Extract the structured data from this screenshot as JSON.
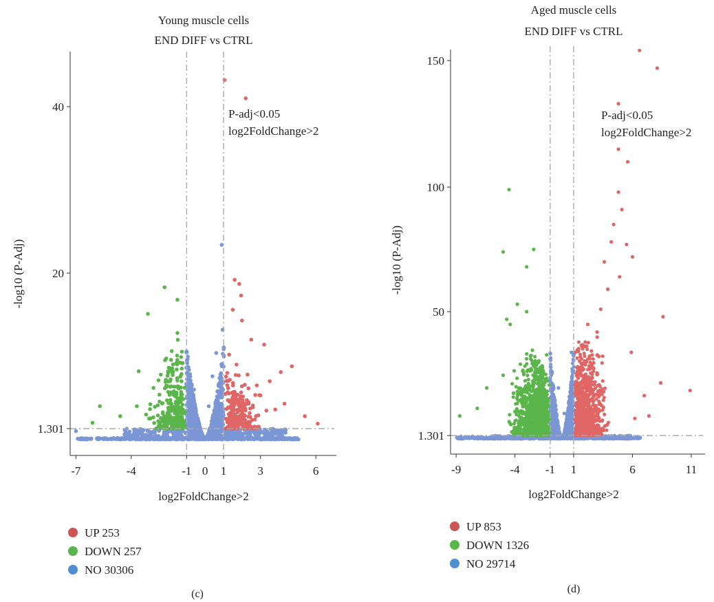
{
  "chart_data": [
    {
      "type": "scatter",
      "panel": "(c)",
      "title_line1": "Young muscle cells",
      "title_line2": "END DIFF vs CTRL",
      "xlabel": "log2FoldChange>2",
      "ylabel": "-log10 (P-Adj)",
      "annotation_line1": "P-adj<0.05",
      "annotation_line2": "log2FoldChange>2",
      "x_ticks": [
        -7,
        -4,
        -1,
        0,
        1,
        3,
        6
      ],
      "y_ticks": [
        1.301,
        20,
        40
      ],
      "xlim": [
        -7.2,
        7.0
      ],
      "ylim": [
        0,
        47
      ],
      "thresholds": {
        "x": [
          -1,
          1
        ],
        "y": 1.301
      },
      "colors": {
        "up": "#e06666",
        "down": "#5ab54a",
        "no": "#7b96d4"
      },
      "legend": [
        {
          "label": "UP 253",
          "color": "#cc5555"
        },
        {
          "label": "DOWN 257",
          "color": "#5ab54a"
        },
        {
          "label": "NO 30306",
          "color": "#4e8fd3"
        }
      ],
      "series": [
        {
          "group": "up",
          "points": [
            [
              1.05,
              43.2
            ],
            [
              2.2,
              41.0
            ],
            [
              1.6,
              19.2
            ],
            [
              1.85,
              18.7
            ],
            [
              1.95,
              17.3
            ],
            [
              1.5,
              15.6
            ],
            [
              2.0,
              14.3
            ],
            [
              2.5,
              12.0
            ],
            [
              3.2,
              11.4
            ],
            [
              4.7,
              8.8
            ],
            [
              4.1,
              8.1
            ],
            [
              3.5,
              7.0
            ],
            [
              4.3,
              4.3
            ],
            [
              5.4,
              2.8
            ],
            [
              6.1,
              1.9
            ],
            [
              1.3,
              10.2
            ],
            [
              1.7,
              9.0
            ],
            [
              2.8,
              6.5
            ],
            [
              3.0,
              5.3
            ],
            [
              3.8,
              3.6
            ],
            [
              2.3,
              7.8
            ],
            [
              1.2,
              8.0
            ]
          ]
        },
        {
          "group": "down",
          "points": [
            [
              -2.2,
              18.3
            ],
            [
              -3.1,
              15.1
            ],
            [
              -1.5,
              16.8
            ],
            [
              -1.5,
              12.8
            ],
            [
              -3.6,
              8.2
            ],
            [
              -2.4,
              7.8
            ],
            [
              -1.9,
              7.0
            ],
            [
              -5.7,
              4.0
            ],
            [
              -3.7,
              4.0
            ],
            [
              -6.1,
              2.0
            ],
            [
              -2.8,
              6.2
            ],
            [
              -1.3,
              5.7
            ],
            [
              -4.6,
              2.8
            ],
            [
              -2.0,
              3.8
            ],
            [
              -3.2,
              3.0
            ],
            [
              -1.7,
              2.3
            ]
          ]
        },
        {
          "group": "no",
          "points": [
            [
              0.9,
              23.4
            ],
            [
              0.95,
              13.2
            ],
            [
              0.6,
              10.4
            ],
            [
              0.4,
              7.6
            ],
            [
              -0.6,
              6.0
            ],
            [
              -7.0,
              1.0
            ],
            [
              0.2,
              4.0
            ]
          ]
        }
      ]
    },
    {
      "type": "scatter",
      "panel": "(d)",
      "title_line1": "Aged muscle cells",
      "title_line2": "END DIFF vs CTRL",
      "xlabel": "log2FoldChange>2",
      "ylabel": "-log10 (P-Adj)",
      "annotation_line1": "P-adj<0.05",
      "annotation_line2": "log2FoldChange>2",
      "x_ticks": [
        -9,
        -4,
        -1,
        1,
        6,
        11
      ],
      "y_ticks": [
        1.301,
        50,
        100,
        150
      ],
      "xlim": [
        -9.3,
        12.0
      ],
      "ylim": [
        0,
        155
      ],
      "thresholds": {
        "x": [
          -1,
          1
        ],
        "y": 1.301
      },
      "colors": {
        "up": "#e06666",
        "down": "#5ab54a",
        "no": "#7b96d4"
      },
      "legend": [
        {
          "label": "UP 853",
          "color": "#cc5555"
        },
        {
          "label": "DOWN 1326",
          "color": "#5ab54a"
        },
        {
          "label": "NO 29714",
          "color": "#4e8fd3"
        }
      ],
      "series": [
        {
          "group": "up",
          "points": [
            [
              6.6,
              154
            ],
            [
              8.1,
              147
            ],
            [
              4.8,
              133
            ],
            [
              4.8,
              115
            ],
            [
              5.6,
              110
            ],
            [
              4.8,
              98
            ],
            [
              5.1,
              91
            ],
            [
              4.4,
              85
            ],
            [
              4.2,
              78
            ],
            [
              5.5,
              77
            ],
            [
              4.9,
              64
            ],
            [
              3.9,
              59
            ],
            [
              8.6,
              48
            ],
            [
              3.3,
              51
            ],
            [
              8.4,
              22
            ],
            [
              10.9,
              19
            ],
            [
              7.0,
              17
            ],
            [
              5.9,
              34
            ],
            [
              2.2,
              45
            ],
            [
              3.0,
              40
            ],
            [
              6.2,
              8
            ],
            [
              7.4,
              9
            ],
            [
              3.6,
              70
            ],
            [
              6.0,
              72
            ]
          ]
        },
        {
          "group": "down",
          "points": [
            [
              -4.5,
              99
            ],
            [
              -2.4,
              75
            ],
            [
              -5.0,
              74
            ],
            [
              -3.0,
              68
            ],
            [
              -3.8,
              53
            ],
            [
              -3.0,
              50
            ],
            [
              -4.7,
              47
            ],
            [
              -4.4,
              45
            ],
            [
              -7.2,
              12
            ],
            [
              -8.7,
              9
            ],
            [
              -6.4,
              20
            ],
            [
              -5.0,
              25
            ],
            [
              -2.0,
              30
            ],
            [
              -1.3,
              33
            ]
          ]
        },
        {
          "group": "no",
          "points": [
            [
              -0.3,
              20
            ],
            [
              0.2,
              10
            ],
            [
              0.8,
              34
            ],
            [
              -8.6,
              1
            ],
            [
              -7.6,
              1
            ]
          ]
        }
      ]
    }
  ]
}
